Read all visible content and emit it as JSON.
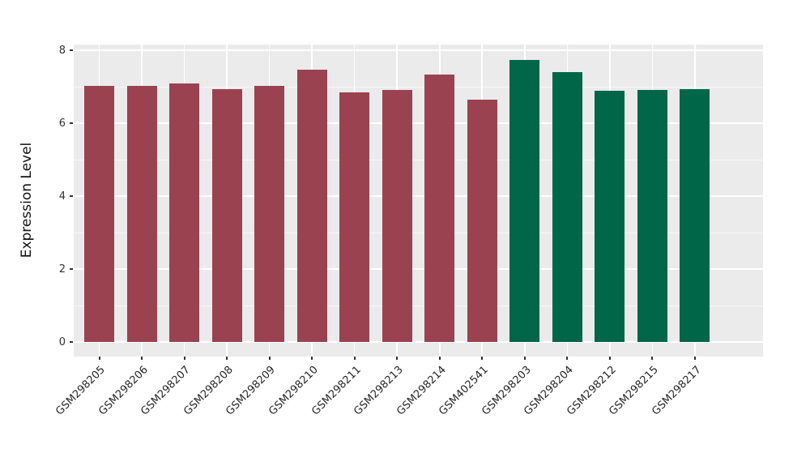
{
  "figure": {
    "background": "#FFFFFF"
  },
  "chart_data": {
    "type": "bar",
    "title": "",
    "xlabel": "",
    "ylabel": "Expression Level",
    "ylim": [
      0,
      8
    ],
    "yticks": [
      0,
      2,
      4,
      6,
      8
    ],
    "minor_yticks": [
      1,
      3,
      5,
      7
    ],
    "legend_position": "none",
    "panel_background": "#EBEBEB",
    "grid_color": "#FFFFFF",
    "axis_text_color": "#333333",
    "categories": [
      "GSM298205",
      "GSM298206",
      "GSM298207",
      "GSM298208",
      "GSM298209",
      "GSM298210",
      "GSM298211",
      "GSM298213",
      "GSM298214",
      "GSM402541",
      "GSM298203",
      "GSM298204",
      "GSM298212",
      "GSM298215",
      "GSM298217"
    ],
    "values": [
      7.03,
      7.03,
      7.09,
      6.93,
      7.02,
      7.47,
      6.84,
      6.92,
      7.34,
      6.64,
      7.73,
      7.39,
      6.88,
      6.91,
      6.93
    ],
    "groups": [
      "maroon",
      "maroon",
      "maroon",
      "maroon",
      "maroon",
      "maroon",
      "maroon",
      "maroon",
      "maroon",
      "maroon",
      "green",
      "green",
      "green",
      "green",
      "green"
    ],
    "group_colors": {
      "maroon": "#9A4250",
      "green": "#006648"
    }
  }
}
